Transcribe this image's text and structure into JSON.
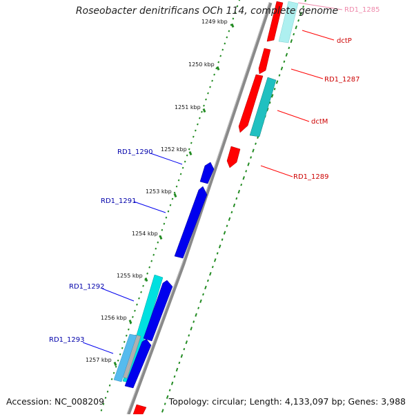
{
  "title": "Roseobacter denitrificans OCh 114, complete genome",
  "footer": {
    "accession": "Accession: NC_008209",
    "topology": "Topology: circular; Length: 4,133,097 bp; Genes: 3,988"
  },
  "colors": {
    "forward_gene": "#ff0000",
    "forward_label": "#cc0000",
    "forward_label_faded": "#ee88aa",
    "forward_cds": "#20c0c0",
    "reverse_gene": "#0000ee",
    "reverse_label": "#0000aa",
    "reverse_cds": "#00e0e0",
    "tick_mark": "#228b22",
    "backbone": "#808080"
  },
  "ruler": {
    "unit": "kbp",
    "labels": [
      "1249 kbp",
      "1250 kbp",
      "1251 kbp",
      "1252 kbp",
      "1253 kbp",
      "1254 kbp",
      "1255 kbp",
      "1256 kbp",
      "1257 kbp"
    ]
  },
  "forward_genes": [
    {
      "label": "RD1_1285",
      "faded": true
    },
    {
      "label": "dctP",
      "faded": false
    },
    {
      "label": "RD1_1287",
      "faded": false
    },
    {
      "label": "dctM",
      "faded": false
    },
    {
      "label": "RD1_1289",
      "faded": false
    }
  ],
  "reverse_genes": [
    {
      "label": "RD1_1290"
    },
    {
      "label": "RD1_1291"
    },
    {
      "label": "RD1_1292"
    },
    {
      "label": "RD1_1293"
    }
  ]
}
